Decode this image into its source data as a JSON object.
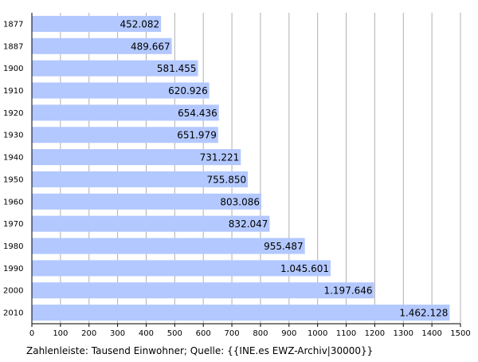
{
  "chart_data": {
    "type": "bar",
    "orientation": "horizontal",
    "categories": [
      "1877",
      "1887",
      "1900",
      "1910",
      "1920",
      "1930",
      "1940",
      "1950",
      "1960",
      "1970",
      "1980",
      "1990",
      "2000",
      "2010"
    ],
    "values": [
      452.082,
      489.667,
      581.455,
      620.926,
      654.436,
      651.979,
      731.221,
      755.85,
      803.086,
      832.047,
      955.487,
      1045.601,
      1197.646,
      1462.128
    ],
    "value_labels": [
      "452.082",
      "489.667",
      "581.455",
      "620.926",
      "654.436",
      "651.979",
      "731.221",
      "755.850",
      "803.086",
      "832.047",
      "955.487",
      "1.045.601",
      "1.197.646",
      "1.462.128"
    ],
    "x_ticks": [
      0,
      100,
      200,
      300,
      400,
      500,
      600,
      700,
      800,
      900,
      1000,
      1100,
      1200,
      1300,
      1400,
      1500
    ],
    "xlim": [
      0,
      1500
    ],
    "grid": "vertical",
    "bar_color": "#b3c8ff",
    "grid_color": "#b0b0b0",
    "caption": "Zahlenleiste: Tausend Einwohner; Quelle: {{INE.es EWZ-Archiv|30000}}"
  }
}
